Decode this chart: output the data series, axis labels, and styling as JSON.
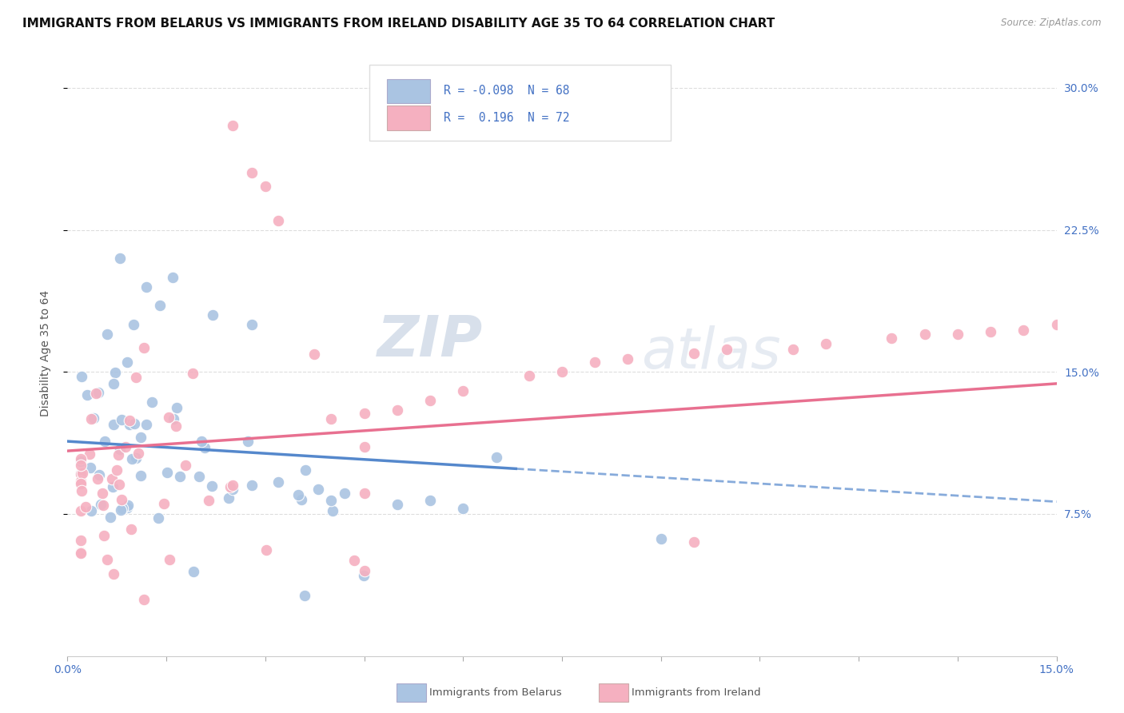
{
  "title": "IMMIGRANTS FROM BELARUS VS IMMIGRANTS FROM IRELAND DISABILITY AGE 35 TO 64 CORRELATION CHART",
  "source": "Source: ZipAtlas.com",
  "ylabel": "Disability Age 35 to 64",
  "xlim": [
    0.0,
    0.15
  ],
  "ylim": [
    0.0,
    0.32
  ],
  "ytick_positions": [
    0.075,
    0.15,
    0.225,
    0.3
  ],
  "ytick_labels": [
    "7.5%",
    "15.0%",
    "22.5%",
    "30.0%"
  ],
  "color_belarus": "#aac4e2",
  "color_ireland": "#f5b0c0",
  "color_line_belarus": "#5588cc",
  "color_line_ireland": "#e87090",
  "color_ticks": "#4472c4",
  "watermark_color": "#ccd8ea",
  "background_color": "#ffffff",
  "grid_color": "#dddddd",
  "title_fontsize": 11,
  "axis_label_fontsize": 10,
  "tick_fontsize": 10,
  "legend_fontsize": 10.5
}
